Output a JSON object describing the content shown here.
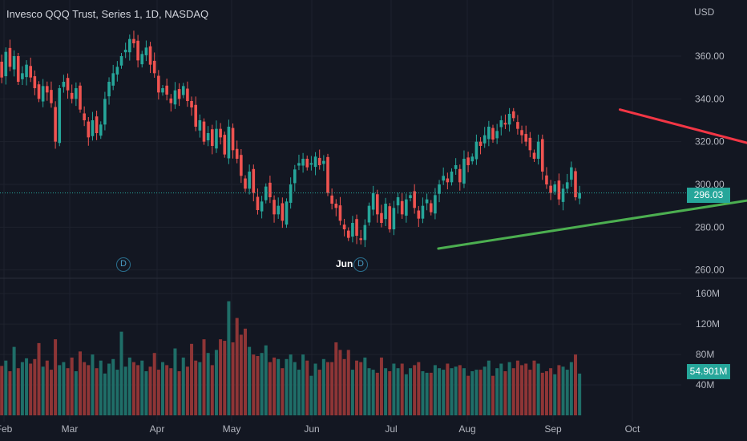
{
  "header": {
    "title": "Invesco QQQ Trust, Series 1, 1D, NASDAQ",
    "currency": "USD"
  },
  "price_axis": {
    "ticks": [
      "360.00",
      "340.00",
      "320.00",
      "300.00",
      "280.00",
      "260.00"
    ],
    "last_price_label": "296.03"
  },
  "volume_axis": {
    "ticks": [
      "160M",
      "120M",
      "80M",
      "40M"
    ],
    "last_volume_label": "54.901M"
  },
  "time_axis": {
    "ticks": [
      "Feb",
      "Mar",
      "Apr",
      "May",
      "Jun",
      "Jul",
      "Aug",
      "Sep",
      "Oct"
    ]
  },
  "annotations": {
    "jun_label": "Jun",
    "marker_letter": "D"
  },
  "colors": {
    "background": "#131722",
    "up": "#26a69a",
    "down": "#ef5350",
    "support_line": "#4caf50",
    "resistance_line": "#f23645"
  },
  "chart_data": {
    "type": "candlestick",
    "title": "Invesco QQQ Trust, Series 1, 1D, NASDAQ",
    "ylabel": "USD",
    "ylim": [
      258,
      375
    ],
    "volume_ylim": [
      0,
      175
    ],
    "last_price": 296.03,
    "last_volume_m": 54.901,
    "price_series": {
      "name": "Invesco QQQ Trust",
      "close": [
        358,
        350,
        362,
        355,
        360,
        348,
        352,
        356,
        350,
        345,
        340,
        346,
        343,
        338,
        320,
        345,
        348,
        344,
        340,
        345,
        335,
        330,
        322,
        330,
        324,
        328,
        340,
        348,
        352,
        355,
        360,
        363,
        368,
        366,
        358,
        361,
        364,
        356,
        352,
        343,
        345,
        342,
        338,
        344,
        340,
        346,
        339,
        336,
        327,
        330,
        320,
        324,
        318,
        326,
        322,
        314,
        327,
        316,
        312,
        304,
        298,
        306,
        296,
        288,
        292,
        299,
        294,
        286,
        290,
        283,
        292,
        300,
        307,
        310,
        312,
        308,
        310,
        313,
        309,
        311,
        296,
        291,
        289,
        283,
        279,
        275,
        282,
        276,
        274,
        281,
        290,
        296,
        286,
        282,
        291,
        279,
        289,
        294,
        286,
        293,
        295,
        289,
        284,
        290,
        293,
        287,
        295,
        300,
        304,
        301,
        306,
        309,
        301,
        312,
        309,
        313,
        320,
        318,
        323,
        327,
        321,
        325,
        330,
        328,
        333,
        331,
        326,
        323,
        320,
        316,
        312,
        320,
        306,
        300,
        296,
        300,
        293,
        298,
        301,
        308,
        294,
        296.03
      ],
      "volume_m": [
        80,
        65,
        72,
        58,
        90,
        62,
        70,
        75,
        68,
        74,
        95,
        64,
        72,
        60,
        100,
        66,
        70,
        62,
        76,
        58,
        84,
        70,
        66,
        80,
        62,
        72,
        55,
        68,
        74,
        60,
        110,
        64,
        76,
        70,
        66,
        72,
        58,
        64,
        82,
        60,
        70,
        66,
        62,
        88,
        58,
        76,
        64,
        94,
        72,
        70,
        100,
        82,
        66,
        86,
        100,
        98,
        150,
        96,
        128,
        106,
        114,
        90,
        80,
        78,
        82,
        92,
        70,
        76,
        74,
        62,
        74,
        80,
        70,
        60,
        80,
        72,
        52,
        68,
        60,
        74,
        70,
        70,
        96,
        86,
        74,
        86,
        60,
        72,
        70,
        76,
        62,
        60,
        56,
        76,
        62,
        58,
        68,
        62,
        68,
        54,
        62,
        66,
        70,
        58,
        56,
        56,
        66,
        62,
        60,
        68,
        62,
        64,
        66,
        62,
        52,
        58,
        60,
        60,
        64,
        72,
        52,
        62,
        68,
        58,
        70,
        62,
        72,
        66,
        68,
        60,
        72,
        68,
        56,
        58,
        62,
        54,
        66,
        64,
        60,
        70,
        80,
        54.901
      ]
    },
    "trendlines": [
      {
        "name": "support",
        "from": [
          106,
          270
        ],
        "to": [
          205,
          301
        ]
      },
      {
        "name": "resistance",
        "from": [
          150,
          335
        ],
        "to": [
          205,
          305
        ]
      }
    ],
    "y_ticks": [
      360,
      340,
      320,
      300,
      280,
      260
    ],
    "volume_ticks": [
      160,
      120,
      80,
      40
    ],
    "x_ticks": [
      "Feb",
      "Mar",
      "Apr",
      "May",
      "Jun",
      "Jul",
      "Aug",
      "Sep",
      "Oct"
    ]
  }
}
